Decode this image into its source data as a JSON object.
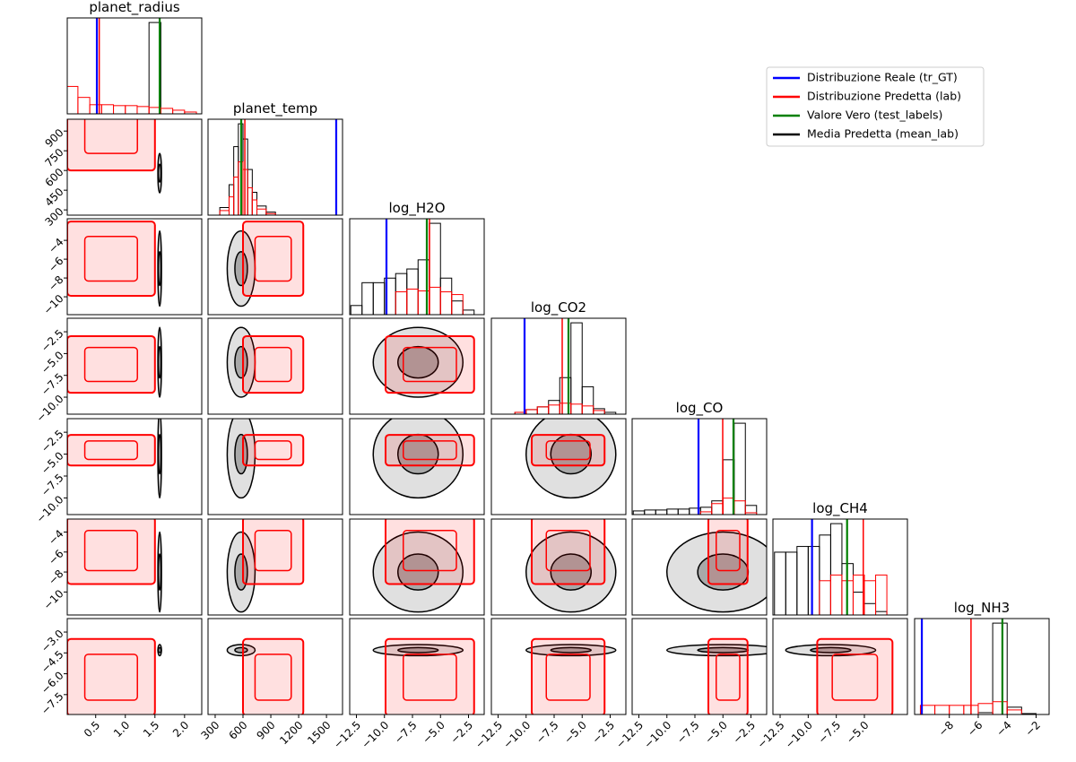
{
  "chart_data": {
    "type": "corner",
    "legend": [
      {
        "name": "Distribuzione Reale (tr_GT)",
        "color": "#0000ff"
      },
      {
        "name": "Distribuzione Predetta (lab)",
        "color": "#ff0000"
      },
      {
        "name": "Valore Vero (test_labels)",
        "color": "#008000"
      },
      {
        "name": "Media Predetta (mean_lab)",
        "color": "#000000"
      }
    ],
    "params": [
      {
        "name": "planet_radius",
        "xlim": [
          0.02,
          2.29
        ],
        "xticks": [
          0.5,
          {
            "value": 1,
            "label": "1.0"
          },
          1.5,
          {
            "value": 2,
            "label": "2.0"
          }
        ],
        "markers": [
          0.52,
          0.56,
          1.58
        ],
        "pred_range": [
          0.02,
          1.5
        ],
        "sample_center": 1.58,
        "sample_spread": 0.03,
        "bins": [
          0,
          0.2,
          0.4,
          0.6,
          0.8,
          1.0,
          1.2,
          1.4,
          1.6,
          1.8,
          2.0,
          2.2
        ],
        "pred_counts": [
          30,
          18,
          10,
          10,
          9,
          9,
          8,
          7,
          6,
          4,
          2
        ],
        "sample_counts": [
          0,
          0,
          0,
          0,
          0,
          0,
          0,
          100,
          0,
          0,
          0
        ]
      },
      {
        "name": "planet_temp",
        "xlim": [
          223,
          1673
        ],
        "xticks": [
          300,
          600,
          900,
          1200,
          1500
        ],
        "ylim": [
          260,
          990
        ],
        "yticks": [
          300,
          450,
          600,
          750,
          900
        ],
        "markers": [
          1605,
          620,
          581
        ],
        "pred_range": [
          600,
          1250
        ],
        "sample_center": 580,
        "sample_spread": 150,
        "bins": [
          350,
          450,
          500,
          550,
          600,
          650,
          700,
          750,
          850,
          950
        ],
        "pred_counts": [
          3,
          12,
          25,
          35,
          30,
          18,
          10,
          4,
          1
        ],
        "sample_counts": [
          5,
          20,
          45,
          60,
          50,
          30,
          15,
          6,
          2
        ]
      },
      {
        "name": "log_H2O",
        "xlim": [
          -13.1,
          -1.1
        ],
        "xticks": [
          {
            "value": -12.5,
            "label": "−12.5"
          },
          {
            "value": -10,
            "label": "−10.0"
          },
          {
            "value": -7.5,
            "label": "−7.5"
          },
          {
            "value": -5,
            "label": "−5.0"
          },
          {
            "value": -2.5,
            "label": "−2.5"
          }
        ],
        "ylim": [
          -11.9,
          -1.7
        ],
        "yticks": [
          {
            "value": -4,
            "label": "−4"
          },
          {
            "value": -6,
            "label": "−6"
          },
          {
            "value": -8,
            "label": "−8"
          },
          {
            "value": -10,
            "label": "−10"
          }
        ],
        "markers": [
          -9.82,
          -5.98,
          -6.22
        ],
        "pred_range": [
          -9.9,
          -2.0
        ],
        "sample_center": -7,
        "sample_spread": 4,
        "bins": [
          -13,
          -12,
          -11,
          -10,
          -9,
          -8,
          -7,
          -6,
          -5,
          -4,
          -3,
          -2
        ],
        "pred_counts": [
          0,
          0,
          0,
          0,
          25,
          28,
          26,
          30,
          25,
          22,
          0
        ],
        "sample_counts": [
          10,
          35,
          35,
          40,
          45,
          50,
          60,
          100,
          40,
          15,
          5
        ]
      },
      {
        "name": "log_CO2",
        "xlim": [
          -13.1,
          -1.1
        ],
        "xticks": [
          {
            "value": -12.5,
            "label": "−12.5"
          },
          {
            "value": -10,
            "label": "−10.0"
          },
          {
            "value": -7.5,
            "label": "−7.5"
          },
          {
            "value": -5,
            "label": "−5.0"
          },
          {
            "value": -2.5,
            "label": "−2.5"
          }
        ],
        "ylim": [
          -11.95,
          -0.95
        ],
        "yticks": [
          {
            "value": -2.5,
            "label": "−2.5"
          },
          {
            "value": -5,
            "label": "−5.0"
          },
          {
            "value": -7.5,
            "label": "−7.5"
          },
          {
            "value": -10,
            "label": "−10.0"
          }
        ],
        "markers": [
          -10.14,
          -6.78,
          -6.22
        ],
        "pred_range": [
          -9.5,
          -3.0
        ],
        "sample_center": -6,
        "sample_spread": 4,
        "bins": [
          -13,
          -12,
          -11,
          -10,
          -9,
          -8,
          -7,
          -6,
          -5,
          -4,
          -3,
          -2
        ],
        "pred_counts": [
          0,
          0,
          2,
          5,
          8,
          10,
          12,
          11,
          9,
          4,
          0
        ],
        "sample_counts": [
          0,
          0,
          2,
          5,
          8,
          15,
          40,
          100,
          30,
          6,
          2
        ]
      },
      {
        "name": "log_CO",
        "xlim": [
          -13.1,
          -1.1
        ],
        "xticks": [
          {
            "value": -12.5,
            "label": "−12.5"
          },
          {
            "value": -10,
            "label": "−10.0"
          },
          {
            "value": -7.5,
            "label": "−7.5"
          },
          {
            "value": -5,
            "label": "−5.0"
          },
          {
            "value": -2.5,
            "label": "−2.5"
          }
        ],
        "ylim": [
          -11.9,
          -0.95
        ],
        "yticks": [
          {
            "value": -2.5,
            "label": "−2.5"
          },
          {
            "value": -5,
            "label": "−5.0"
          },
          {
            "value": -7.5,
            "label": "−7.5"
          },
          {
            "value": -10,
            "label": "−10.0"
          }
        ],
        "markers": [
          -7.18,
          -5.02,
          -4.06
        ],
        "pred_range": [
          -6.3,
          -2.8
        ],
        "sample_center": -5,
        "sample_spread": 5,
        "bins": [
          -13,
          -12,
          -11,
          -10,
          -9,
          -8,
          -7,
          -6,
          -5,
          -4,
          -3,
          -2
        ],
        "pred_counts": [
          0,
          0,
          0,
          0,
          0,
          0,
          3,
          12,
          18,
          15,
          2
        ],
        "sample_counts": [
          4,
          5,
          5,
          6,
          6,
          7,
          8,
          15,
          60,
          100,
          10
        ]
      },
      {
        "name": "log_CH4",
        "xlim": [
          -13.14,
          -1.17
        ],
        "xticks": [
          {
            "value": -12.5,
            "label": "−12.5"
          },
          {
            "value": -10,
            "label": "−10.0"
          },
          {
            "value": -7.5,
            "label": "−7.5"
          },
          {
            "value": -5,
            "label": "−5.0"
          }
        ],
        "ylim": [
          -12.3,
          -2.7
        ],
        "yticks": [
          {
            "value": -4,
            "label": "−4"
          },
          {
            "value": -6,
            "label": "−6"
          },
          {
            "value": -8,
            "label": "−8"
          },
          {
            "value": -10,
            "label": "−10"
          }
        ],
        "markers": [
          -9.66,
          -5.1,
          -6.54
        ],
        "pred_range": [
          -9.2,
          -2.5
        ],
        "sample_center": -8,
        "sample_spread": 4,
        "bins": [
          -13,
          -12,
          -11,
          -10,
          -9,
          -8,
          -7,
          -6,
          -5,
          -4,
          -3,
          -2
        ],
        "pred_counts": [
          0,
          0,
          0,
          0,
          30,
          35,
          30,
          35,
          30,
          35,
          0
        ],
        "sample_counts": [
          55,
          55,
          60,
          60,
          70,
          80,
          45,
          20,
          10,
          3,
          0
        ]
      },
      {
        "name": "log_NH3",
        "xlim": [
          -10.4,
          -1.1
        ],
        "xticks": [
          {
            "value": -8,
            "label": "−8"
          },
          {
            "value": -6,
            "label": "−6"
          },
          {
            "value": -4,
            "label": "−4"
          },
          {
            "value": -2,
            "label": "−2"
          }
        ],
        "ylim": [
          -8.93,
          -2.03
        ],
        "yticks": [
          {
            "value": -3,
            "label": "−3.0"
          },
          {
            "value": -4.5,
            "label": "−4.5"
          },
          {
            "value": -6,
            "label": "−6.0"
          },
          {
            "value": -7.5,
            "label": "−7.5"
          }
        ],
        "markers": [
          -9.9,
          -6.5,
          -4.33
        ],
        "pred_range": [
          -9.0,
          -3.5
        ],
        "sample_center": -4.3,
        "sample_spread": 0.4,
        "bins": [
          -10,
          -9,
          -8,
          -7,
          -6,
          -5,
          -4,
          -3,
          -2
        ],
        "pred_counts": [
          10,
          10,
          10,
          10,
          12,
          14,
          5,
          0
        ],
        "sample_counts": [
          0,
          0,
          0,
          0,
          2,
          100,
          8,
          1
        ]
      }
    ]
  }
}
